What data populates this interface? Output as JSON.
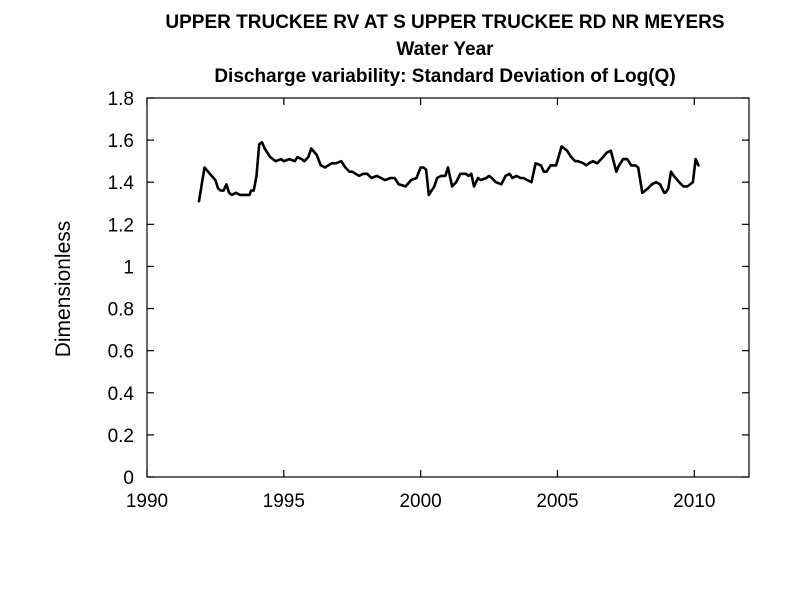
{
  "chart_data": {
    "type": "line",
    "title": "UPPER TRUCKEE RV AT S UPPER TRUCKEE RD NR MEYERS",
    "subtitle": "Water Year",
    "subtitle2": "Discharge variability: Standard Deviation of Log(Q)",
    "xlabel": "",
    "ylabel": "Dimensionless",
    "xlim": [
      1990,
      2012
    ],
    "ylim": [
      0,
      1.8
    ],
    "xticks": [
      1990,
      1995,
      2000,
      2005,
      2010
    ],
    "yticks": [
      0,
      0.2,
      0.4,
      0.6,
      0.8,
      1,
      1.2,
      1.4,
      1.6,
      1.8
    ],
    "grid": false,
    "line_color": "#000000",
    "series": [
      {
        "x": [
          1991.9,
          1992.1,
          1992.3,
          1992.5,
          1992.6,
          1992.7,
          1992.8,
          1992.9,
          1993.0,
          1993.1,
          1993.25,
          1993.4,
          1993.6,
          1993.75,
          1993.8,
          1993.9,
          1994.0,
          1994.1,
          1994.2,
          1994.3,
          1994.5,
          1994.7,
          1994.9,
          1995.0,
          1995.2,
          1995.4,
          1995.5,
          1995.65,
          1995.75,
          1995.9,
          1996.0,
          1996.2,
          1996.35,
          1996.5,
          1996.75,
          1996.9,
          1997.1,
          1997.25,
          1997.4,
          1997.5,
          1997.75,
          1997.9,
          1998.05,
          1998.2,
          1998.4,
          1998.55,
          1998.7,
          1998.9,
          1999.05,
          1999.2,
          1999.45,
          1999.65,
          1999.85,
          2000.0,
          2000.1,
          2000.2,
          2000.3,
          2000.5,
          2000.6,
          2000.75,
          2000.9,
          2001.0,
          2001.15,
          2001.3,
          2001.45,
          2001.65,
          2001.75,
          2001.85,
          2001.95,
          2002.1,
          2002.2,
          2002.4,
          2002.5,
          2002.6,
          2002.75,
          2002.95,
          2003.1,
          2003.25,
          2003.35,
          2003.5,
          2003.65,
          2003.75,
          2003.9,
          2004.05,
          2004.2,
          2004.4,
          2004.5,
          2004.6,
          2004.75,
          2004.95,
          2005.15,
          2005.35,
          2005.5,
          2005.65,
          2005.75,
          2005.95,
          2006.05,
          2006.15,
          2006.3,
          2006.45,
          2006.6,
          2006.8,
          2006.95,
          2007.15,
          2007.25,
          2007.4,
          2007.55,
          2007.7,
          2007.85,
          2007.95,
          2008.1,
          2008.3,
          2008.45,
          2008.6,
          2008.75,
          2008.9,
          2008.95,
          2009.05,
          2009.15,
          2009.25,
          2009.45,
          2009.6,
          2009.75,
          2009.95,
          2010.05,
          2010.15
        ],
        "y": [
          1.31,
          1.47,
          1.44,
          1.41,
          1.37,
          1.36,
          1.36,
          1.39,
          1.35,
          1.34,
          1.35,
          1.34,
          1.34,
          1.34,
          1.36,
          1.36,
          1.43,
          1.58,
          1.59,
          1.56,
          1.52,
          1.5,
          1.51,
          1.5,
          1.51,
          1.5,
          1.52,
          1.51,
          1.5,
          1.52,
          1.56,
          1.53,
          1.48,
          1.47,
          1.49,
          1.49,
          1.5,
          1.47,
          1.45,
          1.45,
          1.43,
          1.44,
          1.44,
          1.42,
          1.43,
          1.42,
          1.41,
          1.42,
          1.42,
          1.39,
          1.38,
          1.41,
          1.42,
          1.47,
          1.47,
          1.46,
          1.34,
          1.38,
          1.42,
          1.43,
          1.43,
          1.47,
          1.38,
          1.4,
          1.44,
          1.44,
          1.43,
          1.44,
          1.38,
          1.42,
          1.41,
          1.42,
          1.43,
          1.42,
          1.4,
          1.39,
          1.43,
          1.44,
          1.42,
          1.43,
          1.42,
          1.42,
          1.41,
          1.4,
          1.49,
          1.48,
          1.45,
          1.45,
          1.48,
          1.48,
          1.57,
          1.55,
          1.52,
          1.5,
          1.5,
          1.49,
          1.48,
          1.49,
          1.5,
          1.49,
          1.51,
          1.54,
          1.55,
          1.45,
          1.48,
          1.51,
          1.51,
          1.48,
          1.48,
          1.47,
          1.35,
          1.37,
          1.39,
          1.4,
          1.39,
          1.35,
          1.35,
          1.37,
          1.45,
          1.43,
          1.4,
          1.38,
          1.38,
          1.4,
          1.51,
          1.48
        ]
      }
    ]
  }
}
